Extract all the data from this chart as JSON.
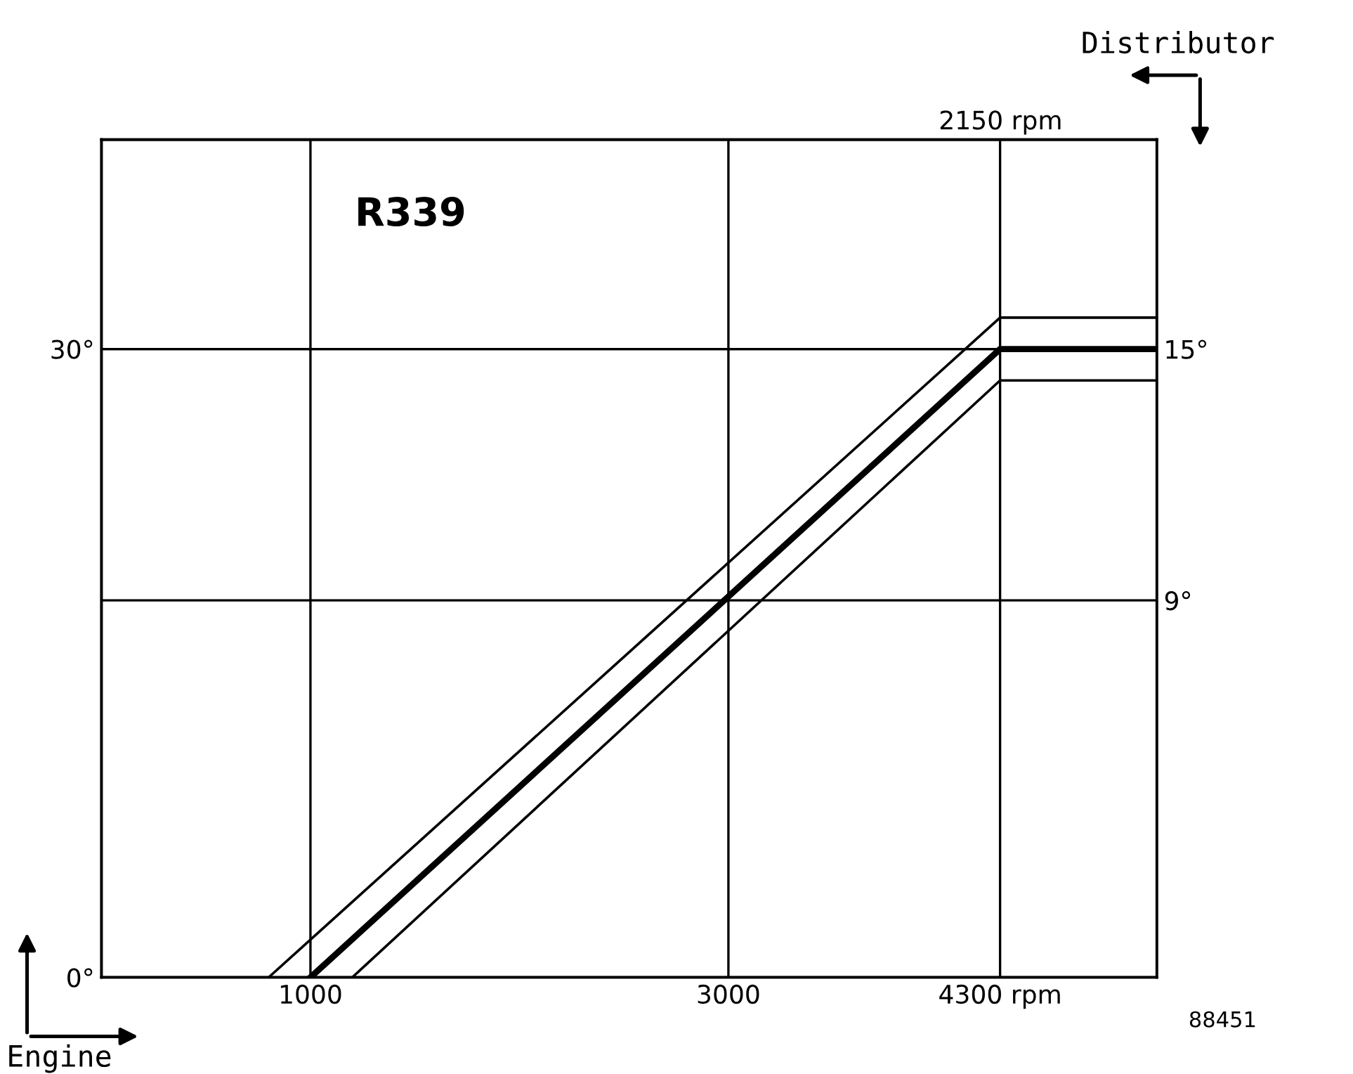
{
  "chart_data": {
    "type": "line",
    "xlabel": "Engine",
    "y2label": "Distributor",
    "annotations": [
      "R339",
      "88451",
      "2150 rpm"
    ],
    "series": [
      {
        "color": "#000000",
        "x": [
          1000,
          4300,
          5050
        ],
        "values": [
          0,
          30,
          30
        ],
        "line_style": "solid"
      },
      {
        "color": "#000000",
        "x": [
          800,
          4300,
          5050
        ],
        "values": [
          0,
          31.5,
          31.5
        ],
        "line_style": "solid"
      },
      {
        "color": "#000000",
        "x": [
          1200,
          4300,
          5050
        ],
        "values": [
          0,
          28.5,
          28.5
        ],
        "line_style": "solid"
      }
    ],
    "xlim": [
      0,
      5050
    ],
    "xticks": [
      1000,
      3000,
      {
        "value": 4300,
        "label": "4300 rpm"
      }
    ],
    "ylim": [
      0,
      40
    ],
    "yticks": [
      {
        "value": 0,
        "label": "0°"
      },
      {
        "value": 30,
        "label": "30°"
      }
    ],
    "y2lim": [
      0,
      20
    ],
    "y2ticks": [
      {
        "value": 9,
        "label": "9°"
      },
      {
        "value": 15,
        "label": "15°"
      }
    ],
    "grid": true,
    "marker": "none"
  }
}
